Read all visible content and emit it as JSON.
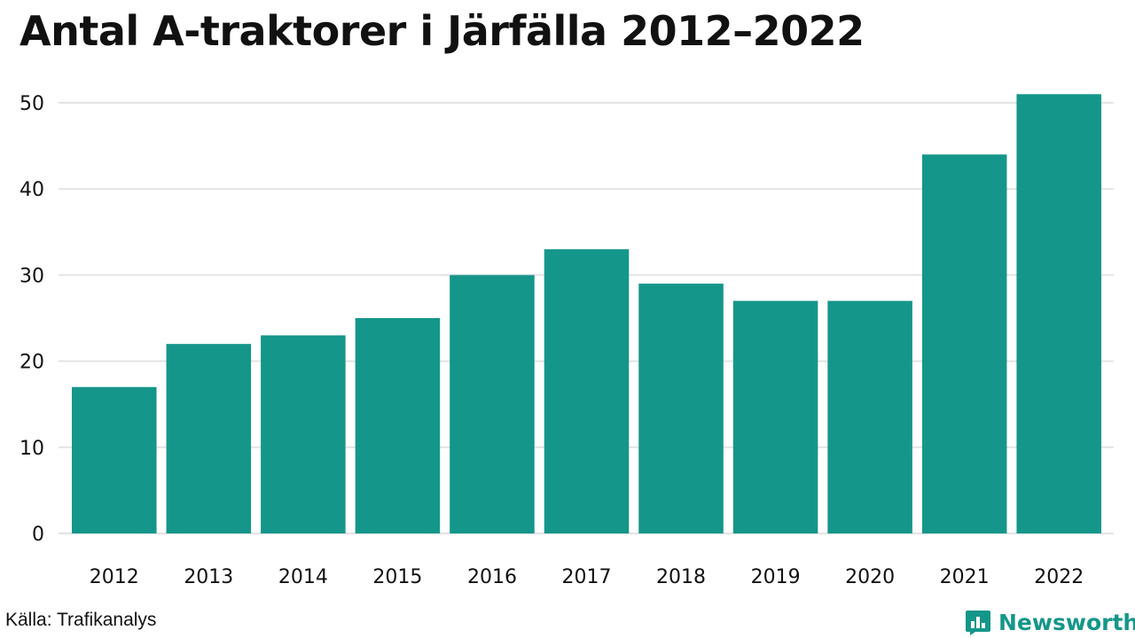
{
  "title": "Antal A-traktorer i Järfälla 2012–2022",
  "source": "Källa: Trafikanalys",
  "brand": {
    "name": "Newsworthy",
    "icon": "newsworthy-logo-icon"
  },
  "colors": {
    "bar": "#15968a",
    "grid": "#e3e3e3",
    "text": "#111111"
  },
  "chart_data": {
    "type": "bar",
    "title": "Antal A-traktorer i Järfälla 2012–2022",
    "xlabel": "",
    "ylabel": "",
    "categories": [
      "2012",
      "2013",
      "2014",
      "2015",
      "2016",
      "2017",
      "2018",
      "2019",
      "2020",
      "2021",
      "2022"
    ],
    "values": [
      17,
      22,
      23,
      25,
      30,
      33,
      29,
      27,
      27,
      44,
      51
    ],
    "ylim": [
      0,
      52
    ],
    "yticks": [
      0,
      10,
      20,
      30,
      40,
      50
    ],
    "grid": true,
    "legend": "none"
  }
}
